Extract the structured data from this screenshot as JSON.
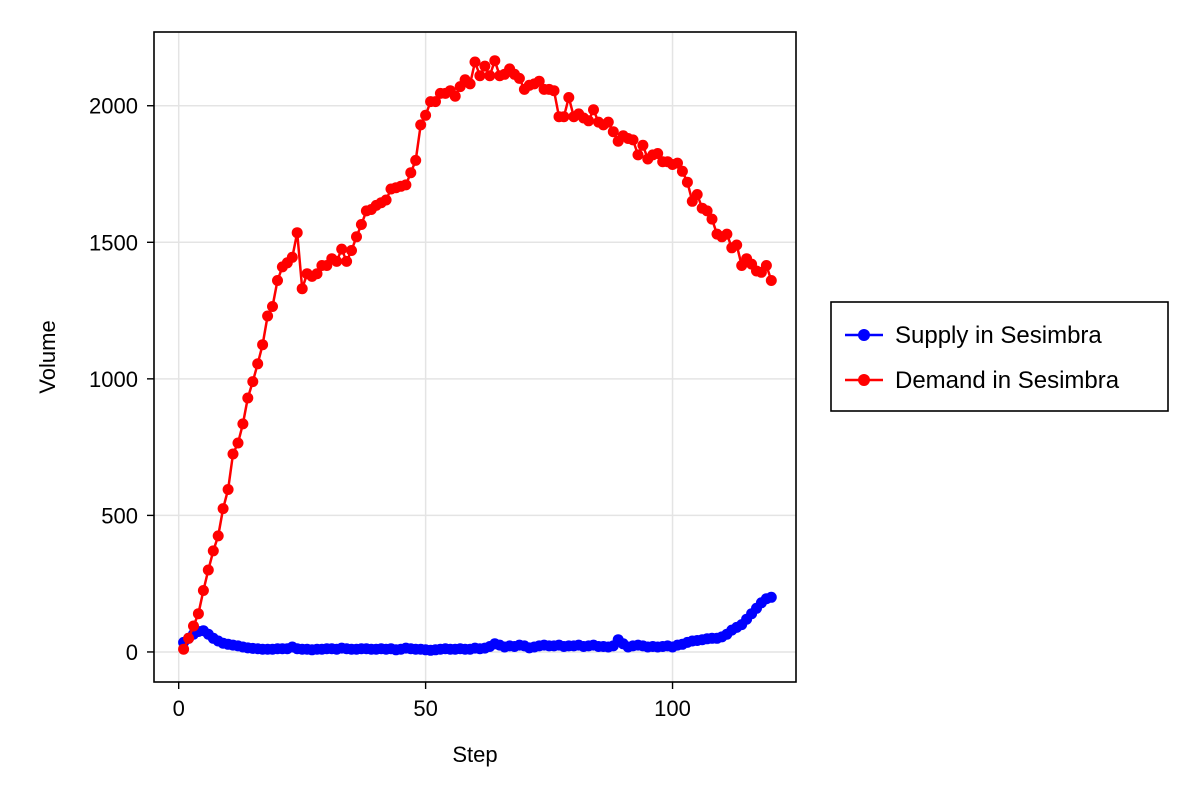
{
  "chart_data": {
    "type": "line",
    "xlabel": "Step",
    "ylabel": "Volume",
    "xlim": [
      -5,
      125
    ],
    "ylim": [
      -110,
      2270
    ],
    "xticks": [
      0,
      50,
      100
    ],
    "yticks": [
      0,
      500,
      1000,
      1500,
      2000
    ],
    "grid": true,
    "legend_position": "right",
    "series": [
      {
        "name": "Supply in Sesimbra",
        "color": "#0000ff",
        "x": [
          1,
          2,
          3,
          4,
          5,
          6,
          7,
          8,
          9,
          10,
          11,
          12,
          13,
          14,
          15,
          16,
          17,
          18,
          19,
          20,
          21,
          22,
          23,
          24,
          25,
          26,
          27,
          28,
          29,
          30,
          31,
          32,
          33,
          34,
          35,
          36,
          37,
          38,
          39,
          40,
          41,
          42,
          43,
          44,
          45,
          46,
          47,
          48,
          49,
          50,
          51,
          52,
          53,
          54,
          55,
          56,
          57,
          58,
          59,
          60,
          61,
          62,
          63,
          64,
          65,
          66,
          67,
          68,
          69,
          70,
          71,
          72,
          73,
          74,
          75,
          76,
          77,
          78,
          79,
          80,
          81,
          82,
          83,
          84,
          85,
          86,
          87,
          88,
          89,
          90,
          91,
          92,
          93,
          94,
          95,
          96,
          97,
          98,
          99,
          100,
          101,
          102,
          103,
          104,
          105,
          106,
          107,
          108,
          109,
          110,
          111,
          112,
          113,
          114,
          115,
          116,
          117,
          118,
          119,
          120
        ],
        "y": [
          35,
          50,
          65,
          75,
          78,
          65,
          50,
          40,
          32,
          28,
          25,
          22,
          18,
          15,
          13,
          12,
          10,
          10,
          10,
          12,
          12,
          12,
          18,
          12,
          10,
          10,
          8,
          10,
          10,
          12,
          12,
          10,
          14,
          12,
          10,
          10,
          12,
          12,
          10,
          10,
          12,
          10,
          12,
          8,
          10,
          14,
          12,
          10,
          10,
          8,
          6,
          8,
          10,
          12,
          10,
          10,
          12,
          10,
          10,
          14,
          12,
          14,
          20,
          30,
          25,
          18,
          22,
          20,
          25,
          22,
          15,
          18,
          22,
          25,
          22,
          22,
          25,
          20,
          22,
          22,
          25,
          20,
          22,
          25,
          20,
          20,
          18,
          22,
          45,
          30,
          18,
          22,
          25,
          22,
          18,
          20,
          18,
          20,
          22,
          18,
          25,
          28,
          35,
          40,
          42,
          45,
          48,
          50,
          50,
          55,
          65,
          80,
          90,
          100,
          120,
          140,
          160,
          180,
          195,
          200
        ]
      },
      {
        "name": "Demand in Sesimbra",
        "color": "#ff0000",
        "x": [
          1,
          2,
          3,
          4,
          5,
          6,
          7,
          8,
          9,
          10,
          11,
          12,
          13,
          14,
          15,
          16,
          17,
          18,
          19,
          20,
          21,
          22,
          23,
          24,
          25,
          26,
          27,
          28,
          29,
          30,
          31,
          32,
          33,
          34,
          35,
          36,
          37,
          38,
          39,
          40,
          41,
          42,
          43,
          44,
          45,
          46,
          47,
          48,
          49,
          50,
          51,
          52,
          53,
          54,
          55,
          56,
          57,
          58,
          59,
          60,
          61,
          62,
          63,
          64,
          65,
          66,
          67,
          68,
          69,
          70,
          71,
          72,
          73,
          74,
          75,
          76,
          77,
          78,
          79,
          80,
          81,
          82,
          83,
          84,
          85,
          86,
          87,
          88,
          89,
          90,
          91,
          92,
          93,
          94,
          95,
          96,
          97,
          98,
          99,
          100,
          101,
          102,
          103,
          104,
          105,
          106,
          107,
          108,
          109,
          110,
          111,
          112,
          113,
          114,
          115,
          116,
          117,
          118,
          119,
          120
        ],
        "y": [
          10,
          50,
          95,
          140,
          225,
          300,
          370,
          425,
          525,
          595,
          725,
          765,
          835,
          930,
          990,
          1055,
          1125,
          1230,
          1265,
          1360,
          1410,
          1425,
          1445,
          1535,
          1330,
          1385,
          1375,
          1385,
          1415,
          1415,
          1440,
          1430,
          1475,
          1430,
          1470,
          1520,
          1565,
          1615,
          1620,
          1635,
          1645,
          1655,
          1695,
          1700,
          1705,
          1710,
          1755,
          1800,
          1930,
          1965,
          2015,
          2015,
          2045,
          2045,
          2055,
          2035,
          2070,
          2095,
          2080,
          2160,
          2110,
          2145,
          2110,
          2165,
          2110,
          2115,
          2135,
          2115,
          2100,
          2060,
          2075,
          2080,
          2090,
          2060,
          2060,
          2055,
          1960,
          1960,
          2030,
          1960,
          1970,
          1955,
          1945,
          1985,
          1940,
          1930,
          1940,
          1905,
          1870,
          1890,
          1880,
          1875,
          1820,
          1855,
          1805,
          1820,
          1825,
          1795,
          1795,
          1785,
          1790,
          1760,
          1720,
          1650,
          1675,
          1625,
          1615,
          1585,
          1530,
          1520,
          1530,
          1480,
          1490,
          1415,
          1440,
          1420,
          1395,
          1390,
          1415,
          1360
        ]
      }
    ]
  }
}
